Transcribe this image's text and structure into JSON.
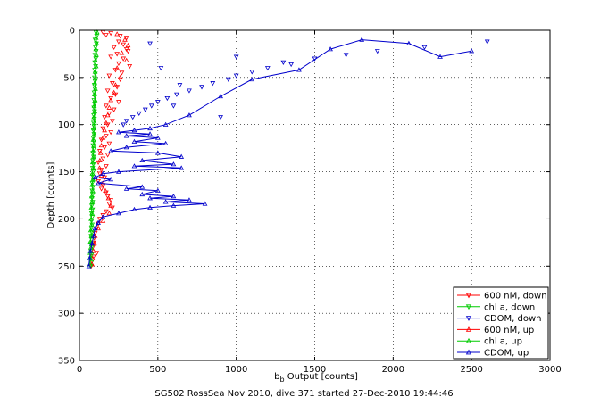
{
  "caption": "SG502 RossSea Nov 2010, dive 371 started 27-Dec-2010 19:44:46",
  "chart_data": {
    "type": "scatter",
    "title": "",
    "xlabel_main": "b",
    "xlabel_sub": "b",
    "xlabel_rest": " Output [counts]",
    "ylabel": "Depth [counts]",
    "xlim": [
      0,
      3000
    ],
    "ylim": [
      0,
      350
    ],
    "y_reversed": true,
    "grid": true,
    "legend_position": "bottom-right",
    "x_ticks": [
      0,
      500,
      1000,
      1500,
      2000,
      2500,
      3000
    ],
    "y_ticks": [
      0,
      50,
      100,
      150,
      200,
      250,
      300,
      350
    ],
    "series": [
      {
        "name": "600 nM, down",
        "color": "#ff0000",
        "marker": "triangle-down",
        "line": false,
        "points": [
          [
            150,
            2
          ],
          [
            170,
            5
          ],
          [
            200,
            3
          ],
          [
            260,
            6
          ],
          [
            300,
            8
          ],
          [
            250,
            12
          ],
          [
            280,
            15
          ],
          [
            220,
            18
          ],
          [
            300,
            20
          ],
          [
            240,
            25
          ],
          [
            310,
            22
          ],
          [
            280,
            30
          ],
          [
            200,
            28
          ],
          [
            250,
            35
          ],
          [
            320,
            38
          ],
          [
            230,
            42
          ],
          [
            270,
            45
          ],
          [
            190,
            48
          ],
          [
            260,
            52
          ],
          [
            210,
            56
          ],
          [
            240,
            60
          ],
          [
            180,
            64
          ],
          [
            230,
            68
          ],
          [
            200,
            72
          ],
          [
            250,
            76
          ],
          [
            170,
            80
          ],
          [
            220,
            84
          ],
          [
            190,
            88
          ],
          [
            160,
            92
          ],
          [
            210,
            96
          ],
          [
            180,
            100
          ],
          [
            150,
            104
          ],
          [
            200,
            108
          ],
          [
            170,
            112
          ],
          [
            140,
            116
          ],
          [
            190,
            120
          ],
          [
            160,
            124
          ],
          [
            130,
            128
          ],
          [
            180,
            132
          ],
          [
            150,
            136
          ],
          [
            120,
            140
          ],
          [
            170,
            144
          ],
          [
            140,
            148
          ],
          [
            130,
            152
          ],
          [
            160,
            156
          ],
          [
            120,
            160
          ],
          [
            150,
            164
          ],
          [
            140,
            168
          ],
          [
            170,
            172
          ],
          [
            180,
            176
          ],
          [
            200,
            180
          ],
          [
            190,
            184
          ],
          [
            210,
            188
          ],
          [
            170,
            192
          ],
          [
            150,
            196
          ],
          [
            130,
            200
          ],
          [
            120,
            205
          ],
          [
            110,
            210
          ],
          [
            100,
            215
          ],
          [
            95,
            220
          ],
          [
            90,
            225
          ],
          [
            85,
            230
          ],
          [
            110,
            236
          ],
          [
            90,
            240
          ],
          [
            80,
            245
          ],
          [
            75,
            250
          ]
        ]
      },
      {
        "name": "chl a, down",
        "color": "#00cc00",
        "marker": "triangle-down",
        "line": false,
        "points": [
          [
            105,
            2
          ],
          [
            110,
            6
          ],
          [
            100,
            10
          ],
          [
            108,
            14
          ],
          [
            102,
            18
          ],
          [
            106,
            22
          ],
          [
            99,
            26
          ],
          [
            104,
            30
          ],
          [
            98,
            34
          ],
          [
            103,
            38
          ],
          [
            97,
            42
          ],
          [
            101,
            46
          ],
          [
            96,
            50
          ],
          [
            100,
            54
          ],
          [
            95,
            58
          ],
          [
            99,
            62
          ],
          [
            94,
            66
          ],
          [
            98,
            70
          ],
          [
            93,
            74
          ],
          [
            97,
            78
          ],
          [
            92,
            82
          ],
          [
            96,
            86
          ],
          [
            91,
            90
          ],
          [
            95,
            94
          ],
          [
            90,
            98
          ],
          [
            94,
            102
          ],
          [
            89,
            106
          ],
          [
            93,
            110
          ],
          [
            88,
            114
          ],
          [
            92,
            118
          ],
          [
            87,
            122
          ],
          [
            91,
            126
          ],
          [
            86,
            130
          ],
          [
            90,
            134
          ],
          [
            85,
            138
          ],
          [
            89,
            142
          ],
          [
            84,
            146
          ],
          [
            88,
            150
          ],
          [
            83,
            154
          ],
          [
            87,
            158
          ],
          [
            82,
            162
          ],
          [
            86,
            166
          ],
          [
            81,
            170
          ],
          [
            85,
            174
          ],
          [
            80,
            178
          ],
          [
            84,
            182
          ],
          [
            79,
            186
          ],
          [
            83,
            190
          ],
          [
            78,
            194
          ],
          [
            82,
            198
          ],
          [
            77,
            202
          ],
          [
            81,
            206
          ],
          [
            76,
            210
          ],
          [
            80,
            214
          ],
          [
            75,
            218
          ],
          [
            79,
            222
          ],
          [
            74,
            226
          ],
          [
            78,
            230
          ],
          [
            73,
            234
          ],
          [
            77,
            238
          ],
          [
            72,
            242
          ],
          [
            76,
            246
          ],
          [
            71,
            250
          ]
        ]
      },
      {
        "name": "CDOM, down",
        "color": "#0000cc",
        "marker": "triangle-down",
        "line": false,
        "points": [
          [
            2600,
            12
          ],
          [
            2200,
            18
          ],
          [
            1900,
            22
          ],
          [
            1700,
            26
          ],
          [
            1500,
            30
          ],
          [
            1350,
            36
          ],
          [
            1200,
            40
          ],
          [
            1100,
            44
          ],
          [
            1000,
            48
          ],
          [
            950,
            52
          ],
          [
            850,
            56
          ],
          [
            780,
            60
          ],
          [
            700,
            64
          ],
          [
            620,
            68
          ],
          [
            560,
            72
          ],
          [
            500,
            76
          ],
          [
            460,
            80
          ],
          [
            420,
            84
          ],
          [
            380,
            88
          ],
          [
            340,
            92
          ],
          [
            300,
            96
          ],
          [
            280,
            100
          ],
          [
            900,
            92
          ],
          [
            600,
            80
          ],
          [
            1300,
            34
          ],
          [
            1000,
            28
          ],
          [
            450,
            14
          ],
          [
            520,
            40
          ],
          [
            640,
            58
          ]
        ]
      },
      {
        "name": "600 nM, up",
        "color": "#ff0000",
        "marker": "triangle-up",
        "line": false,
        "points": [
          [
            240,
            4
          ],
          [
            290,
            10
          ],
          [
            310,
            16
          ],
          [
            270,
            24
          ],
          [
            300,
            32
          ],
          [
            240,
            40
          ],
          [
            260,
            50
          ],
          [
            230,
            58
          ],
          [
            220,
            66
          ],
          [
            200,
            74
          ],
          [
            190,
            82
          ],
          [
            180,
            90
          ],
          [
            170,
            98
          ],
          [
            160,
            106
          ],
          [
            150,
            114
          ],
          [
            140,
            122
          ],
          [
            135,
            130
          ],
          [
            130,
            138
          ],
          [
            128,
            146
          ],
          [
            140,
            154
          ],
          [
            150,
            162
          ],
          [
            165,
            170
          ],
          [
            185,
            178
          ],
          [
            200,
            186
          ],
          [
            190,
            194
          ],
          [
            150,
            202
          ],
          [
            120,
            210
          ],
          [
            100,
            218
          ],
          [
            95,
            226
          ],
          [
            90,
            234
          ],
          [
            85,
            242
          ],
          [
            80,
            248
          ]
        ]
      },
      {
        "name": "chl a, up",
        "color": "#00cc00",
        "marker": "triangle-up",
        "line": true,
        "points": [
          [
            112,
            2
          ],
          [
            106,
            8
          ],
          [
            110,
            14
          ],
          [
            104,
            20
          ],
          [
            108,
            26
          ],
          [
            102,
            32
          ],
          [
            106,
            38
          ],
          [
            100,
            44
          ],
          [
            104,
            50
          ],
          [
            98,
            56
          ],
          [
            102,
            62
          ],
          [
            96,
            68
          ],
          [
            100,
            74
          ],
          [
            94,
            80
          ],
          [
            98,
            86
          ],
          [
            92,
            92
          ],
          [
            96,
            98
          ],
          [
            90,
            104
          ],
          [
            94,
            110
          ],
          [
            88,
            116
          ],
          [
            92,
            122
          ],
          [
            86,
            128
          ],
          [
            90,
            134
          ],
          [
            84,
            140
          ],
          [
            88,
            146
          ],
          [
            82,
            152
          ],
          [
            86,
            158
          ],
          [
            80,
            164
          ],
          [
            84,
            170
          ],
          [
            78,
            176
          ],
          [
            82,
            182
          ],
          [
            76,
            188
          ],
          [
            80,
            194
          ],
          [
            74,
            200
          ],
          [
            78,
            206
          ],
          [
            72,
            212
          ],
          [
            76,
            218
          ],
          [
            70,
            224
          ],
          [
            74,
            230
          ],
          [
            68,
            236
          ],
          [
            72,
            242
          ],
          [
            66,
            248
          ]
        ]
      },
      {
        "name": "CDOM, up",
        "color": "#0000cc",
        "marker": "triangle-up",
        "line": true,
        "points": [
          [
            2500,
            22
          ],
          [
            2300,
            28
          ],
          [
            2100,
            14
          ],
          [
            1800,
            10
          ],
          [
            1600,
            20
          ],
          [
            1400,
            42
          ],
          [
            1100,
            52
          ],
          [
            900,
            70
          ],
          [
            700,
            90
          ],
          [
            550,
            100
          ],
          [
            450,
            104
          ],
          [
            350,
            106
          ],
          [
            250,
            108
          ],
          [
            450,
            110
          ],
          [
            300,
            112
          ],
          [
            500,
            114
          ],
          [
            350,
            118
          ],
          [
            550,
            120
          ],
          [
            300,
            124
          ],
          [
            200,
            128
          ],
          [
            500,
            130
          ],
          [
            650,
            134
          ],
          [
            400,
            138
          ],
          [
            600,
            142
          ],
          [
            350,
            144
          ],
          [
            650,
            146
          ],
          [
            250,
            150
          ],
          [
            150,
            152
          ],
          [
            100,
            156
          ],
          [
            200,
            158
          ],
          [
            120,
            162
          ],
          [
            400,
            166
          ],
          [
            300,
            168
          ],
          [
            500,
            170
          ],
          [
            400,
            174
          ],
          [
            600,
            176
          ],
          [
            450,
            178
          ],
          [
            700,
            180
          ],
          [
            550,
            182
          ],
          [
            800,
            184
          ],
          [
            600,
            186
          ],
          [
            450,
            188
          ],
          [
            350,
            190
          ],
          [
            250,
            194
          ],
          [
            150,
            198
          ],
          [
            120,
            204
          ],
          [
            100,
            210
          ],
          [
            90,
            218
          ],
          [
            80,
            226
          ],
          [
            70,
            234
          ],
          [
            65,
            242
          ],
          [
            60,
            250
          ]
        ]
      }
    ]
  }
}
